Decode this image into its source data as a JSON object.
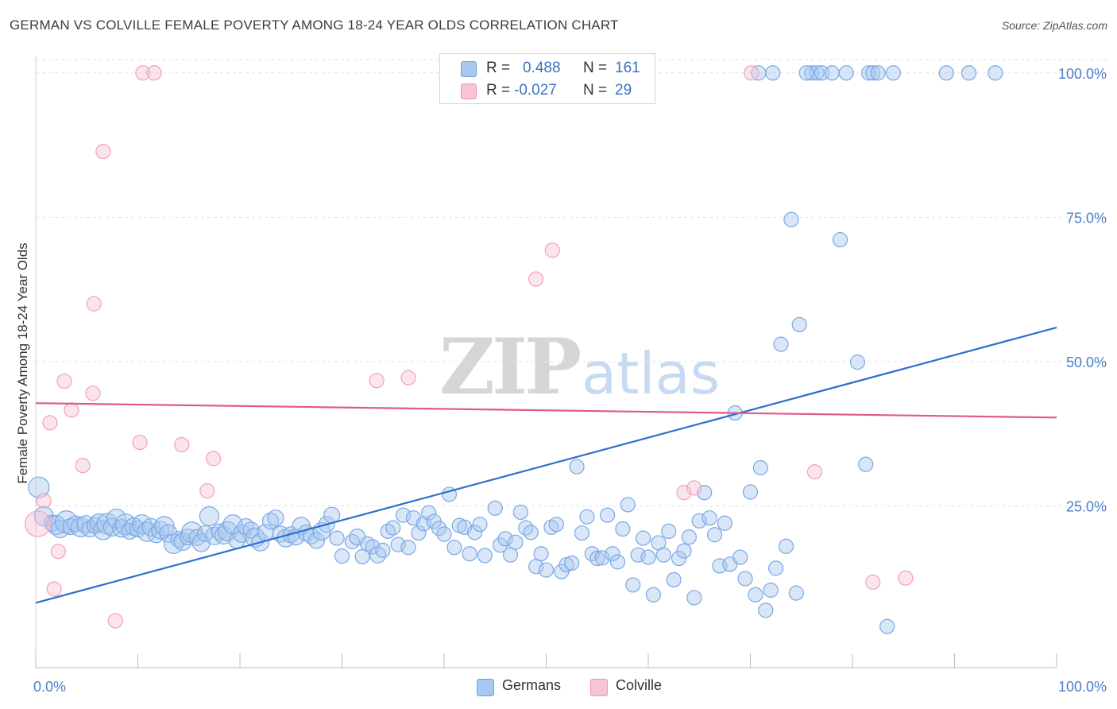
{
  "title": "GERMAN VS COLVILLE FEMALE POVERTY AMONG 18-24 YEAR OLDS CORRELATION CHART",
  "source": "Source: ZipAtlas.com",
  "watermark": {
    "part1": "ZIP",
    "part2": "atlas"
  },
  "legend": {
    "r_label": "R =",
    "n_label": "N =",
    "rows": [
      {
        "series": "Germans",
        "r": "0.488",
        "n": "161",
        "color": "#a9c8f0",
        "border": "#6f9fdc",
        "text_color": "#3a72c6"
      },
      {
        "series": "Colville",
        "r": "-0.027",
        "n": "29",
        "color": "#f8c3d3",
        "border": "#e996b0",
        "text_color": "#3a72c6"
      }
    ]
  },
  "bottom_legend": [
    {
      "label": "Germans",
      "color": "#a9c8f0",
      "border": "#6f9fdc"
    },
    {
      "label": "Colville",
      "color": "#f8c3d3",
      "border": "#e996b0"
    }
  ],
  "chart_data": {
    "type": "scatter",
    "title": "GERMAN VS COLVILLE FEMALE POVERTY AMONG 18-24 YEAR OLDS CORRELATION CHART",
    "xlabel": "",
    "ylabel": "Female Poverty Among 18-24 Year Olds",
    "xlim": [
      0,
      100
    ],
    "ylim": [
      0,
      103
    ],
    "x_tick_labels": [
      "0.0%",
      "100.0%"
    ],
    "y_tick_labels": [
      {
        "value": 25,
        "label": "25.0%"
      },
      {
        "value": 50,
        "label": "50.0%"
      },
      {
        "value": 75,
        "label": "75.0%"
      },
      {
        "value": 100,
        "label": "100.0%"
      }
    ],
    "grid": "horizontal dashed",
    "legend_position": "top-center",
    "series": [
      {
        "name": "Germans",
        "color": "#7aa8e4",
        "trend": {
          "x": [
            0,
            100
          ],
          "y": [
            8.2,
            55.9
          ],
          "color": "#2f6fce"
        },
        "points": [
          [
            0.3,
            28.2,
            13
          ],
          [
            0.8,
            23.2,
            12
          ],
          [
            1.6,
            22.0,
            10
          ],
          [
            2.0,
            21.7,
            12
          ],
          [
            2.4,
            21.0,
            11
          ],
          [
            3.0,
            22.2,
            14
          ],
          [
            3.4,
            21.4,
            10
          ],
          [
            3.9,
            21.9,
            10
          ],
          [
            4.4,
            21.3,
            12
          ],
          [
            4.9,
            21.8,
            11
          ],
          [
            5.3,
            21.0,
            10
          ],
          [
            5.8,
            21.6,
            10
          ],
          [
            6.2,
            22.1,
            11
          ],
          [
            6.6,
            20.8,
            12
          ],
          [
            7.0,
            21.9,
            13
          ],
          [
            7.5,
            21.3,
            11
          ],
          [
            7.9,
            22.8,
            12
          ],
          [
            8.4,
            21.1,
            11
          ],
          [
            8.8,
            21.8,
            13
          ],
          [
            9.2,
            20.6,
            10
          ],
          [
            9.6,
            21.4,
            11
          ],
          [
            10.0,
            21.0,
            10
          ],
          [
            10.4,
            21.8,
            12
          ],
          [
            10.9,
            20.5,
            12
          ],
          [
            11.3,
            21.3,
            11
          ],
          [
            11.8,
            20.0,
            10
          ],
          [
            12.2,
            20.8,
            11
          ],
          [
            12.6,
            21.5,
            12
          ],
          [
            13.0,
            20.2,
            11
          ],
          [
            13.5,
            18.4,
            12
          ],
          [
            14.0,
            19.2,
            10
          ],
          [
            14.4,
            18.8,
            11
          ],
          [
            14.9,
            19.6,
            10
          ],
          [
            15.3,
            20.4,
            13
          ],
          [
            15.8,
            19.5,
            10
          ],
          [
            16.2,
            18.6,
            11
          ],
          [
            16.6,
            20.2,
            10
          ],
          [
            17.0,
            23.2,
            12
          ],
          [
            17.5,
            19.8,
            11
          ],
          [
            18.0,
            20.5,
            10
          ],
          [
            18.4,
            19.9,
            11
          ],
          [
            18.8,
            20.6,
            12
          ],
          [
            19.3,
            21.8,
            12
          ],
          [
            19.7,
            19.0,
            10
          ],
          [
            20.2,
            20.2,
            11
          ],
          [
            20.6,
            21.4,
            10
          ],
          [
            21.1,
            20.8,
            10
          ],
          [
            21.5,
            19.5,
            12
          ],
          [
            22.0,
            18.7,
            11
          ],
          [
            22.5,
            20.4,
            10
          ],
          [
            23.0,
            22.4,
            10
          ],
          [
            23.5,
            22.9,
            10
          ],
          [
            24.0,
            20.1,
            10
          ],
          [
            24.5,
            19.4,
            11
          ],
          [
            25.0,
            20.0,
            10
          ],
          [
            25.5,
            19.6,
            10
          ],
          [
            26.0,
            21.5,
            11
          ],
          [
            26.5,
            20.3,
            10
          ],
          [
            27.0,
            19.8,
            10
          ],
          [
            27.5,
            19.0,
            10
          ],
          [
            28.0,
            20.6,
            11
          ],
          [
            28.5,
            21.8,
            10
          ],
          [
            29.0,
            23.4,
            10
          ],
          [
            29.5,
            19.4,
            9
          ],
          [
            30.0,
            16.3,
            9
          ],
          [
            31.0,
            18.8,
            9
          ],
          [
            31.5,
            19.6,
            10
          ],
          [
            32.0,
            16.2,
            9
          ],
          [
            32.5,
            18.4,
            9
          ],
          [
            33.0,
            17.9,
            9
          ],
          [
            33.5,
            16.5,
            10
          ],
          [
            34.0,
            17.3,
            9
          ],
          [
            34.5,
            20.6,
            9
          ],
          [
            35.0,
            21.2,
            9
          ],
          [
            35.5,
            18.3,
            9
          ],
          [
            36.0,
            23.4,
            9
          ],
          [
            36.5,
            17.8,
            9
          ],
          [
            37.0,
            22.9,
            9
          ],
          [
            37.5,
            20.3,
            9
          ],
          [
            38.0,
            21.9,
            9
          ],
          [
            38.5,
            23.8,
            9
          ],
          [
            39.0,
            22.3,
            9
          ],
          [
            39.5,
            21.1,
            9
          ],
          [
            40.0,
            20.1,
            9
          ],
          [
            40.5,
            27.0,
            9
          ],
          [
            41.0,
            17.8,
            9
          ],
          [
            41.5,
            21.6,
            9
          ],
          [
            42.0,
            21.3,
            9
          ],
          [
            42.5,
            16.7,
            9
          ],
          [
            43.0,
            20.4,
            9
          ],
          [
            43.5,
            21.8,
            9
          ],
          [
            44.0,
            16.4,
            9
          ],
          [
            45.0,
            24.6,
            9
          ],
          [
            45.5,
            18.2,
            9
          ],
          [
            46.0,
            19.3,
            9
          ],
          [
            46.5,
            16.5,
            9
          ],
          [
            47.0,
            18.7,
            9
          ],
          [
            47.5,
            23.9,
            9
          ],
          [
            48.0,
            21.2,
            9
          ],
          [
            48.5,
            20.4,
            9
          ],
          [
            49.0,
            14.5,
            9
          ],
          [
            49.5,
            16.7,
            9
          ],
          [
            50.0,
            13.9,
            9
          ],
          [
            50.5,
            21.3,
            9
          ],
          [
            51.0,
            21.8,
            9
          ],
          [
            51.5,
            13.6,
            9
          ],
          [
            52.0,
            14.8,
            9
          ],
          [
            52.5,
            15.1,
            9
          ],
          [
            53.0,
            31.8,
            9
          ],
          [
            53.5,
            20.3,
            9
          ],
          [
            54.0,
            23.1,
            9
          ],
          [
            54.5,
            16.7,
            9
          ],
          [
            55.0,
            15.9,
            9
          ],
          [
            55.5,
            16.0,
            9
          ],
          [
            56.0,
            23.4,
            9
          ],
          [
            56.5,
            16.7,
            9
          ],
          [
            57.0,
            15.3,
            9
          ],
          [
            57.5,
            21.0,
            9
          ],
          [
            58.0,
            25.2,
            9
          ],
          [
            58.5,
            11.3,
            9
          ],
          [
            59.0,
            16.5,
            9
          ],
          [
            59.5,
            19.4,
            9
          ],
          [
            60.0,
            16.1,
            9
          ],
          [
            60.5,
            9.6,
            9
          ],
          [
            61.0,
            18.6,
            9
          ],
          [
            61.5,
            16.5,
            9
          ],
          [
            62.0,
            20.6,
            9
          ],
          [
            62.5,
            12.2,
            9
          ],
          [
            63.0,
            15.9,
            9
          ],
          [
            63.5,
            17.2,
            9
          ],
          [
            64.0,
            19.6,
            9
          ],
          [
            64.5,
            9.1,
            9
          ],
          [
            65.0,
            22.4,
            9
          ],
          [
            65.5,
            27.3,
            9
          ],
          [
            66.0,
            22.9,
            9
          ],
          [
            66.5,
            20.0,
            9
          ],
          [
            67.0,
            14.6,
            9
          ],
          [
            67.5,
            22.0,
            9
          ],
          [
            68.0,
            14.9,
            9
          ],
          [
            68.5,
            41.1,
            9
          ],
          [
            69.0,
            16.1,
            9
          ],
          [
            69.5,
            12.4,
            9
          ],
          [
            70.0,
            27.4,
            9
          ],
          [
            70.5,
            9.6,
            9
          ],
          [
            71.0,
            31.6,
            9
          ],
          [
            71.5,
            6.9,
            9
          ],
          [
            72.0,
            10.4,
            9
          ],
          [
            72.5,
            14.2,
            9
          ],
          [
            73.0,
            53.0,
            9
          ],
          [
            73.5,
            18.0,
            9
          ],
          [
            74.0,
            74.6,
            9
          ],
          [
            74.5,
            9.9,
            9
          ],
          [
            74.8,
            56.4,
            9
          ],
          [
            76.0,
            100,
            9
          ],
          [
            76.5,
            100,
            9
          ],
          [
            77.0,
            100,
            9
          ],
          [
            78.0,
            100,
            9
          ],
          [
            78.8,
            71.1,
            9
          ],
          [
            80.5,
            49.9,
            9
          ],
          [
            81.3,
            32.2,
            9
          ],
          [
            83.4,
            4.1,
            9
          ],
          [
            70.8,
            100,
            9
          ],
          [
            72.2,
            100,
            9
          ],
          [
            75.5,
            100,
            9
          ],
          [
            79.4,
            100,
            9
          ],
          [
            81.6,
            100,
            9
          ],
          [
            82.0,
            100,
            9
          ],
          [
            82.5,
            100,
            9
          ],
          [
            84.0,
            100,
            9
          ],
          [
            89.2,
            100,
            9
          ],
          [
            91.4,
            100,
            9
          ],
          [
            94.0,
            100,
            9
          ]
        ]
      },
      {
        "name": "Colville",
        "color": "#f4a9c0",
        "trend": {
          "x": [
            0,
            100
          ],
          "y": [
            42.8,
            40.3
          ],
          "color": "#e05a88"
        },
        "points": [
          [
            0.2,
            21.9,
            16
          ],
          [
            0.8,
            25.9,
            9
          ],
          [
            1.4,
            39.4,
            9
          ],
          [
            1.8,
            10.6,
            9
          ],
          [
            2.2,
            17.1,
            9
          ],
          [
            2.8,
            46.6,
            9
          ],
          [
            3.5,
            41.6,
            9
          ],
          [
            4.6,
            32.0,
            9
          ],
          [
            5.6,
            44.5,
            9
          ],
          [
            5.7,
            60.0,
            9
          ],
          [
            6.6,
            86.4,
            9
          ],
          [
            7.8,
            5.1,
            9
          ],
          [
            10.2,
            36.0,
            9
          ],
          [
            10.5,
            100,
            9
          ],
          [
            11.6,
            100,
            9
          ],
          [
            14.3,
            35.6,
            9
          ],
          [
            16.8,
            27.6,
            9
          ],
          [
            17.4,
            33.2,
            9
          ],
          [
            33.4,
            46.7,
            9
          ],
          [
            36.5,
            47.2,
            9
          ],
          [
            49.0,
            64.3,
            9
          ],
          [
            50.6,
            69.3,
            9
          ],
          [
            63.5,
            27.3,
            9
          ],
          [
            64.5,
            28.1,
            9
          ],
          [
            70.1,
            100,
            9
          ],
          [
            76.3,
            30.9,
            9
          ],
          [
            82.0,
            11.8,
            9
          ],
          [
            85.2,
            12.5,
            9
          ]
        ]
      }
    ]
  }
}
